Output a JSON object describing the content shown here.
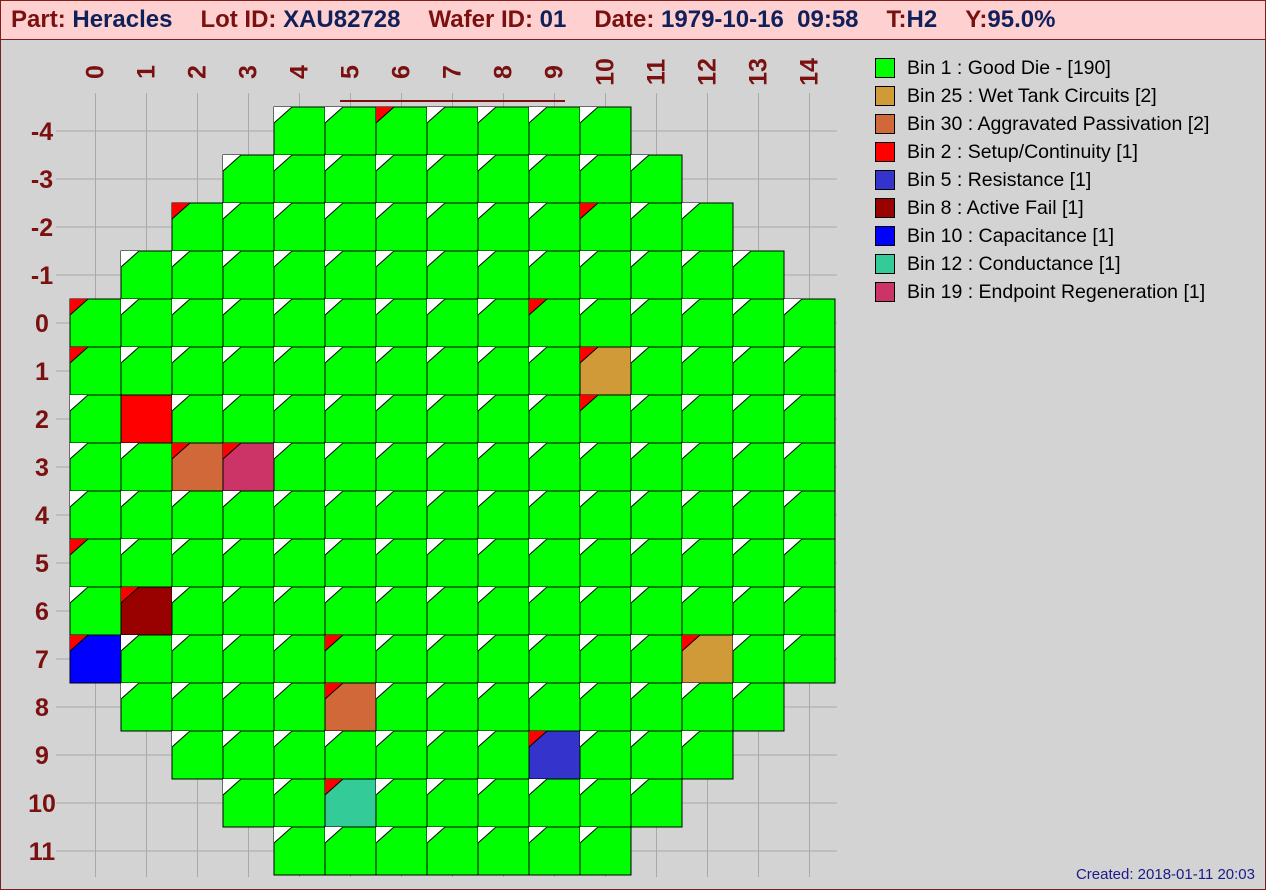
{
  "header": {
    "part_label": "Part:",
    "part_value": "Heracles",
    "lot_label": "Lot ID:",
    "lot_value": "XAU82728",
    "wafer_label": "Wafer ID:",
    "wafer_value": "01",
    "date_label": "Date:",
    "date_value": "1979-10-16  09:58",
    "test_label": "T:",
    "test_value": "H2",
    "yield_label": "Y:",
    "yield_value": "95.0%"
  },
  "footer": {
    "created": "Created: 2018-01-11 20:03"
  },
  "colors": {
    "background": "#d3d3d3",
    "header_background": "#ffd0d0",
    "axis_label": "#7a1010",
    "header_value": "#10205a",
    "grid": "#a9a9a9",
    "corner_flag_fail": "#ff0000"
  },
  "chart_data": {
    "type": "heatmap",
    "title": "",
    "x_ticks": [
      "0",
      "1",
      "2",
      "3",
      "4",
      "5",
      "6",
      "7",
      "8",
      "9",
      "10",
      "11",
      "12",
      "13",
      "14"
    ],
    "y_ticks": [
      "-4",
      "-3",
      "-2",
      "-1",
      "0",
      "1",
      "2",
      "3",
      "4",
      "5",
      "6",
      "7",
      "8",
      "9",
      "10",
      "11"
    ],
    "grid": true,
    "legend_position": "right",
    "bins": [
      {
        "bin": 1,
        "name": "Good Die -",
        "count": 190,
        "color": "#00ff00",
        "label": "Bin 1 : Good Die - [190]"
      },
      {
        "bin": 25,
        "name": "Wet Tank Circuits",
        "count": 2,
        "color": "#d09a38",
        "label": "Bin 25 : Wet Tank Circuits [2]"
      },
      {
        "bin": 30,
        "name": "Aggravated Passivation",
        "count": 2,
        "color": "#d0683a",
        "label": "Bin 30 : Aggravated Passivation [2]"
      },
      {
        "bin": 2,
        "name": "Setup/Continuity",
        "count": 1,
        "color": "#ff0000",
        "label": "Bin 2 : Setup/Continuity [1]"
      },
      {
        "bin": 5,
        "name": "Resistance",
        "count": 1,
        "color": "#3434cc",
        "label": "Bin 5 : Resistance [1]"
      },
      {
        "bin": 8,
        "name": "Active Fail",
        "count": 1,
        "color": "#990000",
        "label": "Bin 8 : Active Fail [1]"
      },
      {
        "bin": 10,
        "name": "Capacitance",
        "count": 1,
        "color": "#0000ff",
        "label": "Bin 10 : Capacitance [1]"
      },
      {
        "bin": 12,
        "name": "Conductance",
        "count": 1,
        "color": "#33cc99",
        "label": "Bin 12 : Conductance [1]"
      },
      {
        "bin": 19,
        "name": "Endpoint Regeneration",
        "count": 1,
        "color": "#cc3366",
        "label": "Bin 19 : Endpoint Regeneration [1]"
      }
    ],
    "rows": [
      {
        "y": -4,
        "x_start": 4,
        "x_end": 10
      },
      {
        "y": -3,
        "x_start": 3,
        "x_end": 11
      },
      {
        "y": -2,
        "x_start": 2,
        "x_end": 12
      },
      {
        "y": -1,
        "x_start": 1,
        "x_end": 13
      },
      {
        "y": 0,
        "x_start": 0,
        "x_end": 14
      },
      {
        "y": 1,
        "x_start": 0,
        "x_end": 14
      },
      {
        "y": 2,
        "x_start": 0,
        "x_end": 14
      },
      {
        "y": 3,
        "x_start": 0,
        "x_end": 14
      },
      {
        "y": 4,
        "x_start": 0,
        "x_end": 14
      },
      {
        "y": 5,
        "x_start": 0,
        "x_end": 14
      },
      {
        "y": 6,
        "x_start": 0,
        "x_end": 14
      },
      {
        "y": 7,
        "x_start": 0,
        "x_end": 14
      },
      {
        "y": 8,
        "x_start": 1,
        "x_end": 13
      },
      {
        "y": 9,
        "x_start": 2,
        "x_end": 12
      },
      {
        "y": 10,
        "x_start": 3,
        "x_end": 11
      },
      {
        "y": 11,
        "x_start": 4,
        "x_end": 10
      }
    ],
    "default_bin": 1,
    "fail_dies": [
      {
        "x": 10,
        "y": 1,
        "bin": 25
      },
      {
        "x": 12,
        "y": 7,
        "bin": 25
      },
      {
        "x": 2,
        "y": 3,
        "bin": 30
      },
      {
        "x": 5,
        "y": 8,
        "bin": 30
      },
      {
        "x": 1,
        "y": 2,
        "bin": 2
      },
      {
        "x": 9,
        "y": 9,
        "bin": 5
      },
      {
        "x": 1,
        "y": 6,
        "bin": 8
      },
      {
        "x": 0,
        "y": 7,
        "bin": 10
      },
      {
        "x": 5,
        "y": 10,
        "bin": 12
      },
      {
        "x": 3,
        "y": 3,
        "bin": 19
      }
    ],
    "red_flag_dies": [
      {
        "x": 6,
        "y": -4
      },
      {
        "x": 2,
        "y": -2
      },
      {
        "x": 10,
        "y": -2
      },
      {
        "x": 0,
        "y": 0
      },
      {
        "x": 9,
        "y": 0
      },
      {
        "x": 0,
        "y": 1
      },
      {
        "x": 10,
        "y": 1
      },
      {
        "x": 1,
        "y": 2
      },
      {
        "x": 10,
        "y": 2
      },
      {
        "x": 2,
        "y": 3
      },
      {
        "x": 3,
        "y": 3
      },
      {
        "x": 0,
        "y": 5
      },
      {
        "x": 1,
        "y": 6
      },
      {
        "x": 0,
        "y": 7
      },
      {
        "x": 5,
        "y": 7
      },
      {
        "x": 12,
        "y": 7
      },
      {
        "x": 5,
        "y": 8
      },
      {
        "x": 9,
        "y": 9
      },
      {
        "x": 5,
        "y": 10
      }
    ],
    "no_flag_dies": [
      {
        "x": 1,
        "y": 2
      }
    ],
    "highlight_columns": [
      5,
      9
    ]
  }
}
